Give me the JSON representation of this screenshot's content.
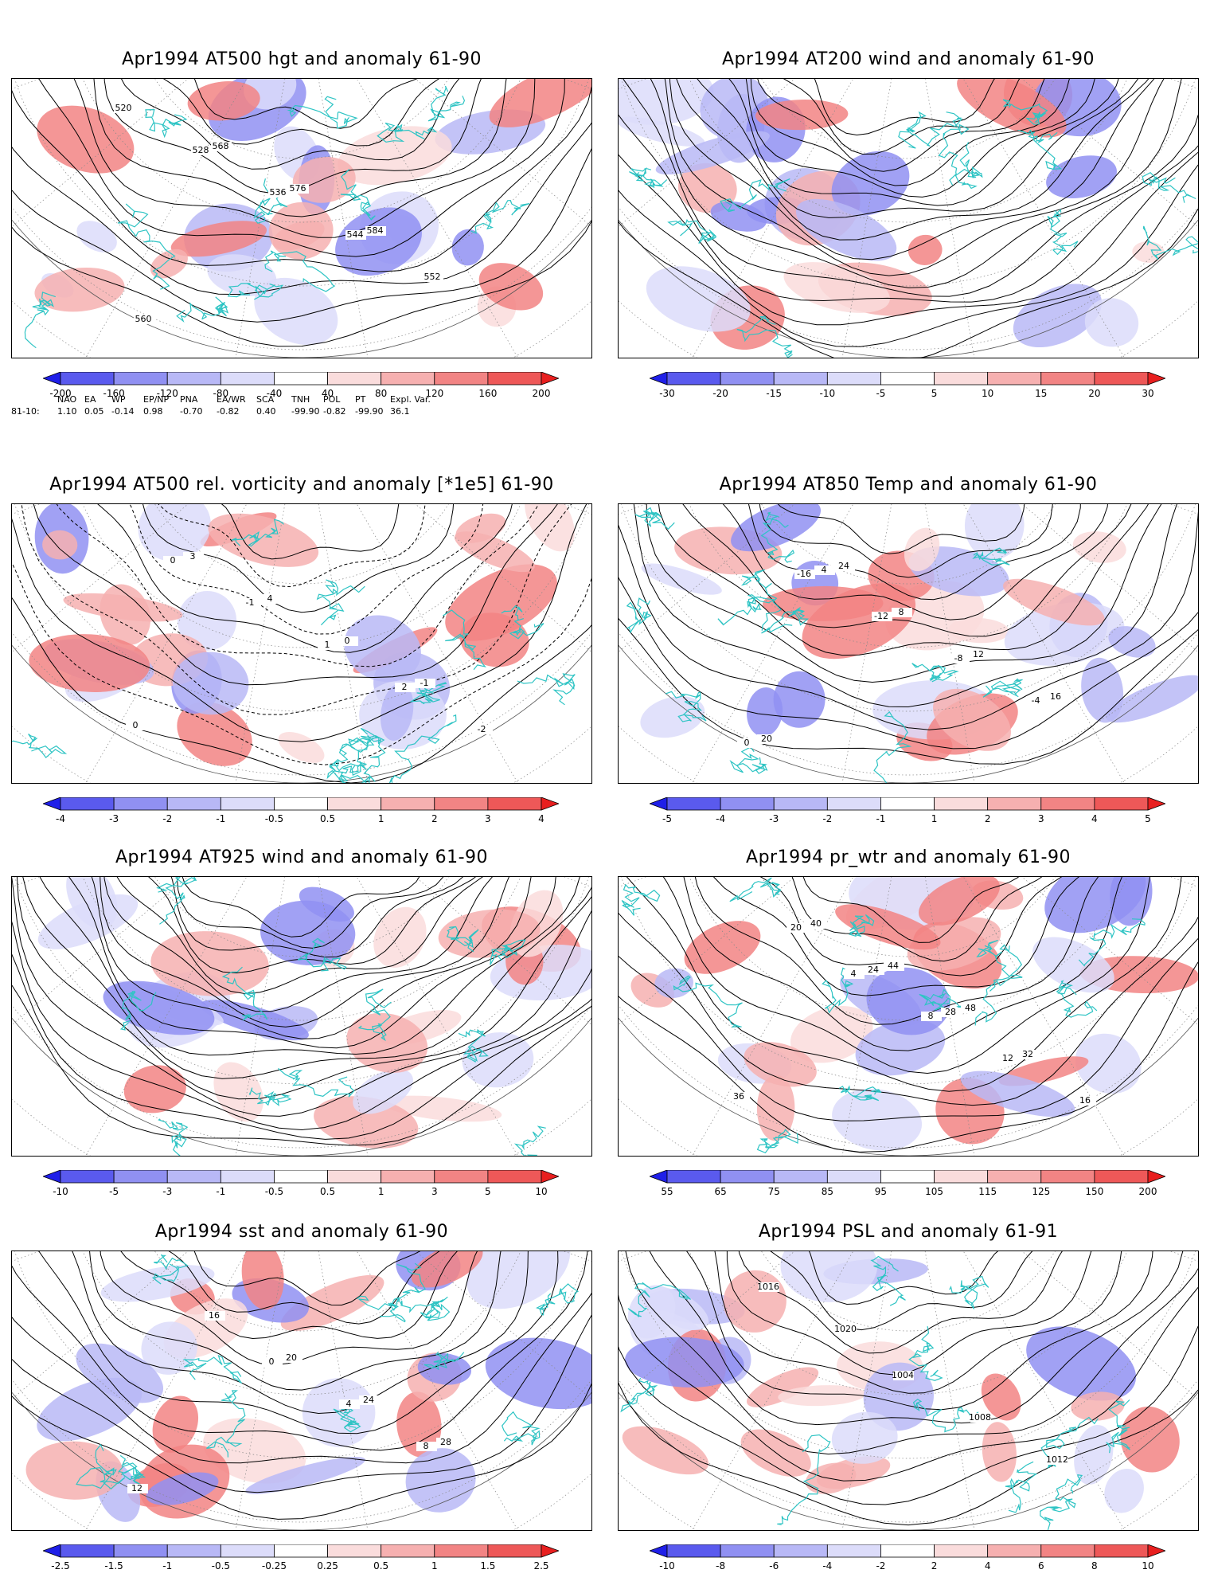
{
  "colors": {
    "coast": "#2ec4c4",
    "contour": "#000000",
    "neg_ramp": [
      "#1f1fe8",
      "#5a5aee",
      "#9090f2",
      "#b8b8f6",
      "#dcdcfa"
    ],
    "pos_ramp": [
      "#fadcdc",
      "#f6b0b0",
      "#f28484",
      "#ee5858",
      "#e81f1f"
    ]
  },
  "panels": [
    {
      "id": "p1",
      "title": "Apr1994 AT500 hgt and anomaly 61-90",
      "field": "contours",
      "contour_labels": [
        "520",
        "528",
        "536",
        "544",
        "552",
        "560",
        "568",
        "576",
        "584"
      ],
      "colorbar": [
        "-200",
        "-160",
        "-120",
        "-80",
        "-40",
        "40",
        "80",
        "120",
        "160",
        "200"
      ]
    },
    {
      "id": "p2",
      "title": "Apr1994 AT200 wind and anomaly 61-90",
      "field": "streamlines",
      "contour_labels": [],
      "colorbar": [
        "-30",
        "-20",
        "-15",
        "-10",
        "-5",
        "5",
        "10",
        "15",
        "20",
        "30"
      ]
    },
    {
      "id": "p3",
      "title": "Apr1994 AT500 rel. vorticity and anomaly [*1e5] 61-90",
      "field": "contours",
      "contour_labels": [
        "0",
        "-1",
        "1",
        "2",
        "-2",
        "3",
        "4",
        "0",
        "-1",
        "0"
      ],
      "colorbar": [
        "-4",
        "-3",
        "-2",
        "-1",
        "-0.5",
        "0.5",
        "1",
        "2",
        "3",
        "4"
      ]
    },
    {
      "id": "p4",
      "title": "Apr1994 AT850 Temp and anomaly 61-90",
      "field": "contours",
      "contour_labels": [
        "-16",
        "-12",
        "-8",
        "-4",
        "0",
        "4",
        "8",
        "12",
        "16",
        "20",
        "24"
      ],
      "colorbar": [
        "-5",
        "-4",
        "-3",
        "-2",
        "-1",
        "1",
        "2",
        "3",
        "4",
        "5"
      ]
    },
    {
      "id": "p5",
      "title": "Apr1994 AT925 wind and anomaly 61-90",
      "field": "streamlines",
      "contour_labels": [],
      "colorbar": [
        "-10",
        "-5",
        "-3",
        "-1",
        "-0.5",
        "0.5",
        "1",
        "3",
        "5",
        "10"
      ]
    },
    {
      "id": "p6",
      "title": "Apr1994 pr_wtr and anomaly 61-90",
      "field": "contours",
      "contour_labels": [
        "4",
        "8",
        "12",
        "16",
        "20",
        "24",
        "28",
        "32",
        "36",
        "40",
        "44",
        "48"
      ],
      "colorbar": [
        "55",
        "65",
        "75",
        "85",
        "95",
        "105",
        "115",
        "125",
        "150",
        "200"
      ]
    },
    {
      "id": "p7",
      "title": "Apr1994 sst and anomaly 61-90",
      "field": "contours",
      "contour_labels": [
        "0",
        "4",
        "8",
        "12",
        "16",
        "20",
        "24",
        "28"
      ],
      "colorbar": [
        "-2.5",
        "-1.5",
        "-1",
        "-0.5",
        "-0.25",
        "0.25",
        "0.5",
        "1",
        "1.5",
        "2.5"
      ]
    },
    {
      "id": "p8",
      "title": "Apr1994 PSL and anomaly 61-91",
      "field": "contours",
      "contour_labels": [
        "1004",
        "1008",
        "1012",
        "1016",
        "1020"
      ],
      "colorbar": [
        "-10",
        "-8",
        "-6",
        "-4",
        "-2",
        "2",
        "4",
        "6",
        "8",
        "10"
      ]
    }
  ],
  "indices": {
    "headers": [
      "NAO",
      "EA",
      "WP",
      "EP/NP",
      "PNA",
      "EA/WR",
      "SCA",
      "TNH",
      "POL",
      "PT",
      "Expl. Var."
    ],
    "row_label": "81-10:",
    "values": [
      "1.10",
      "0.05",
      "-0.14",
      "0.98",
      "-0.70",
      "-0.82",
      "0.40",
      "-99.90",
      "-0.82",
      "-99.90",
      "36.1"
    ]
  }
}
